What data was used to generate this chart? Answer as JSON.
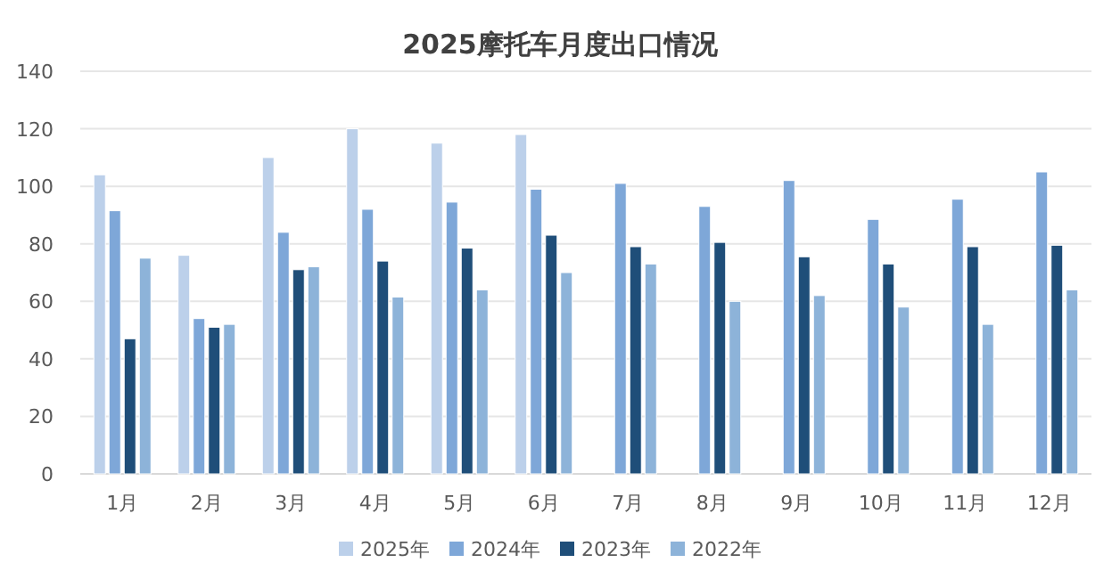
{
  "chart_data": {
    "type": "bar",
    "title": "2025摩托车月度出口情况",
    "categories": [
      "1月",
      "2月",
      "3月",
      "4月",
      "5月",
      "6月",
      "7月",
      "8月",
      "9月",
      "10月",
      "11月",
      "12月"
    ],
    "series": [
      {
        "name": "2025年",
        "color": "#bcd0ea",
        "values": [
          104,
          76,
          110,
          120,
          115,
          118,
          null,
          null,
          null,
          null,
          null,
          null
        ]
      },
      {
        "name": "2024年",
        "color": "#7ea7d8",
        "values": [
          91.5,
          54,
          84,
          92,
          94.5,
          99,
          101,
          93,
          102,
          88.5,
          95.5,
          105
        ]
      },
      {
        "name": "2023年",
        "color": "#1f4e79",
        "values": [
          47,
          51,
          71,
          74,
          78.5,
          83,
          79,
          80.5,
          75.5,
          73,
          79,
          79.5
        ]
      },
      {
        "name": "2022年",
        "color": "#8db3d9",
        "values": [
          75,
          52,
          72,
          61.5,
          64,
          70,
          73,
          60,
          62,
          58,
          52,
          64
        ]
      }
    ],
    "ylim": [
      0,
      140
    ],
    "yticks": [
      0,
      20,
      40,
      60,
      80,
      100,
      120,
      140
    ],
    "grid": "y",
    "legend": "bottom"
  }
}
